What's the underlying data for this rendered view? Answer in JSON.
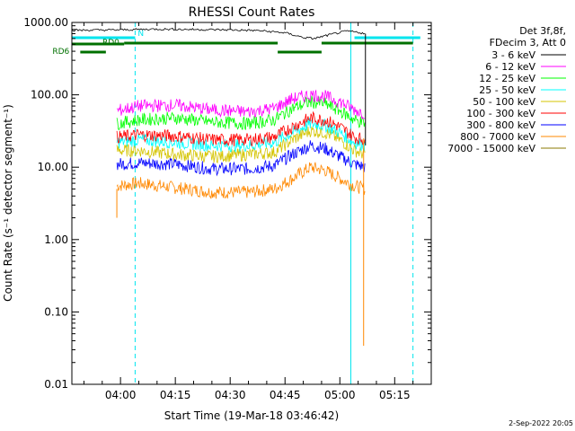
{
  "chart_data": {
    "type": "line",
    "title": "RHESSI Count Rates",
    "xlabel": "Start Time (19-Mar-18 03:46:42)",
    "ylabel": "Count Rate (s⁻¹ detector segment⁻¹)",
    "y_scale": "log",
    "ylim": [
      0.01,
      1000
    ],
    "xlim": [
      "03:46:42",
      "05:25:00"
    ],
    "x_ticks": [
      "04:00",
      "04:15",
      "04:30",
      "04:45",
      "05:00",
      "05:15"
    ],
    "y_ticks": [
      "0.01",
      "0.10",
      "1.00",
      "10.00",
      "100.00",
      "1000.00"
    ],
    "legend_header": [
      "Det 3f,8f,",
      "FDecim 3, Att 0"
    ],
    "legend_position": "top-right, outside plot",
    "series": [
      {
        "name": "3 - 6 keV",
        "color": "#000000",
        "x": [
          "03:46:42",
          "04:00",
          "04:10",
          "04:20",
          "04:30",
          "04:38",
          "04:45",
          "04:50",
          "04:53",
          "04:58",
          "05:02",
          "05:05",
          "05:07"
        ],
        "values": [
          780,
          790,
          810,
          800,
          790,
          770,
          720,
          620,
          600,
          690,
          760,
          730,
          700
        ]
      },
      {
        "name": "6 - 12 keV",
        "color": "#ff00ff",
        "x": [
          "03:59",
          "04:05",
          "04:15",
          "04:25",
          "04:35",
          "04:42",
          "04:47",
          "04:52",
          "04:56",
          "05:00",
          "05:04",
          "05:07"
        ],
        "values": [
          60,
          70,
          72,
          62,
          58,
          65,
          88,
          100,
          95,
          80,
          62,
          55
        ]
      },
      {
        "name": "12 - 25 keV",
        "color": "#00ff00",
        "x": [
          "03:59",
          "04:05",
          "04:15",
          "04:25",
          "04:35",
          "04:42",
          "04:47",
          "04:52",
          "04:56",
          "05:00",
          "05:04",
          "05:07"
        ],
        "values": [
          40,
          45,
          48,
          42,
          40,
          45,
          65,
          80,
          75,
          60,
          45,
          40
        ]
      },
      {
        "name": "25 - 50 keV",
        "color": "#00ffff",
        "x": [
          "03:59",
          "04:05",
          "04:15",
          "04:25",
          "04:35",
          "04:42",
          "04:47",
          "04:52",
          "04:56",
          "05:00",
          "05:04",
          "05:07"
        ],
        "values": [
          22,
          24,
          22,
          20,
          20,
          22,
          30,
          40,
          38,
          30,
          22,
          20
        ]
      },
      {
        "name": "50 - 100 keV",
        "color": "#d4c400",
        "x": [
          "03:59",
          "04:05",
          "04:15",
          "04:25",
          "04:35",
          "04:42",
          "04:47",
          "04:52",
          "04:56",
          "05:00",
          "05:04",
          "05:07"
        ],
        "values": [
          17,
          17,
          15,
          14,
          15,
          16,
          24,
          32,
          30,
          24,
          17,
          15
        ]
      },
      {
        "name": "100 - 300 keV",
        "color": "#ff0000",
        "x": [
          "03:59",
          "04:05",
          "04:15",
          "04:25",
          "04:35",
          "04:42",
          "04:47",
          "04:52",
          "04:56",
          "05:00",
          "05:04",
          "05:07"
        ],
        "values": [
          26,
          28,
          27,
          24,
          24,
          26,
          36,
          48,
          45,
          36,
          26,
          24
        ]
      },
      {
        "name": "300 - 800 keV",
        "color": "#0000ff",
        "x": [
          "03:59",
          "04:05",
          "04:15",
          "04:25",
          "04:35",
          "04:42",
          "04:47",
          "04:52",
          "04:56",
          "05:00",
          "05:04",
          "05:07"
        ],
        "values": [
          11,
          11.5,
          11,
          9.5,
          9.5,
          10.5,
          15,
          20,
          18,
          14,
          11,
          10
        ]
      },
      {
        "name": "800 - 7000 keV",
        "color": "#ff8800",
        "x": [
          "03:59",
          "04:05",
          "04:15",
          "04:25",
          "04:35",
          "04:42",
          "04:47",
          "04:52",
          "04:56",
          "05:00",
          "05:04",
          "05:07"
        ],
        "values": [
          5.5,
          6,
          5.2,
          4.5,
          4.5,
          5,
          7,
          10,
          9,
          7,
          5.5,
          5
        ]
      },
      {
        "name": "7000 - 15000 keV",
        "color": "#8b7a00",
        "x": [],
        "values": []
      }
    ],
    "attenuator_bars": [
      {
        "label": "RD0",
        "start": "03:46:42",
        "end": "04:01"
      },
      {
        "label": "RD6",
        "start": "03:49",
        "end": "03:56"
      },
      {
        "label": "",
        "start": "04:01",
        "end": "04:43"
      },
      {
        "label": "",
        "start": "04:43",
        "end": "04:55"
      },
      {
        "label": "",
        "start": "04:55",
        "end": "05:20"
      }
    ],
    "cyan_bars": [
      {
        "start": "03:46:42",
        "end": "04:04"
      },
      {
        "start": "05:04",
        "end": "05:22"
      }
    ],
    "cyan_bar_label": "N",
    "vertical_lines_solid": [
      "03:46:42",
      "05:03"
    ],
    "vertical_lines_dashed": [
      "04:04",
      "05:20"
    ],
    "grid": false
  },
  "footer": {
    "timestamp": "2-Sep-2022 20:05"
  }
}
